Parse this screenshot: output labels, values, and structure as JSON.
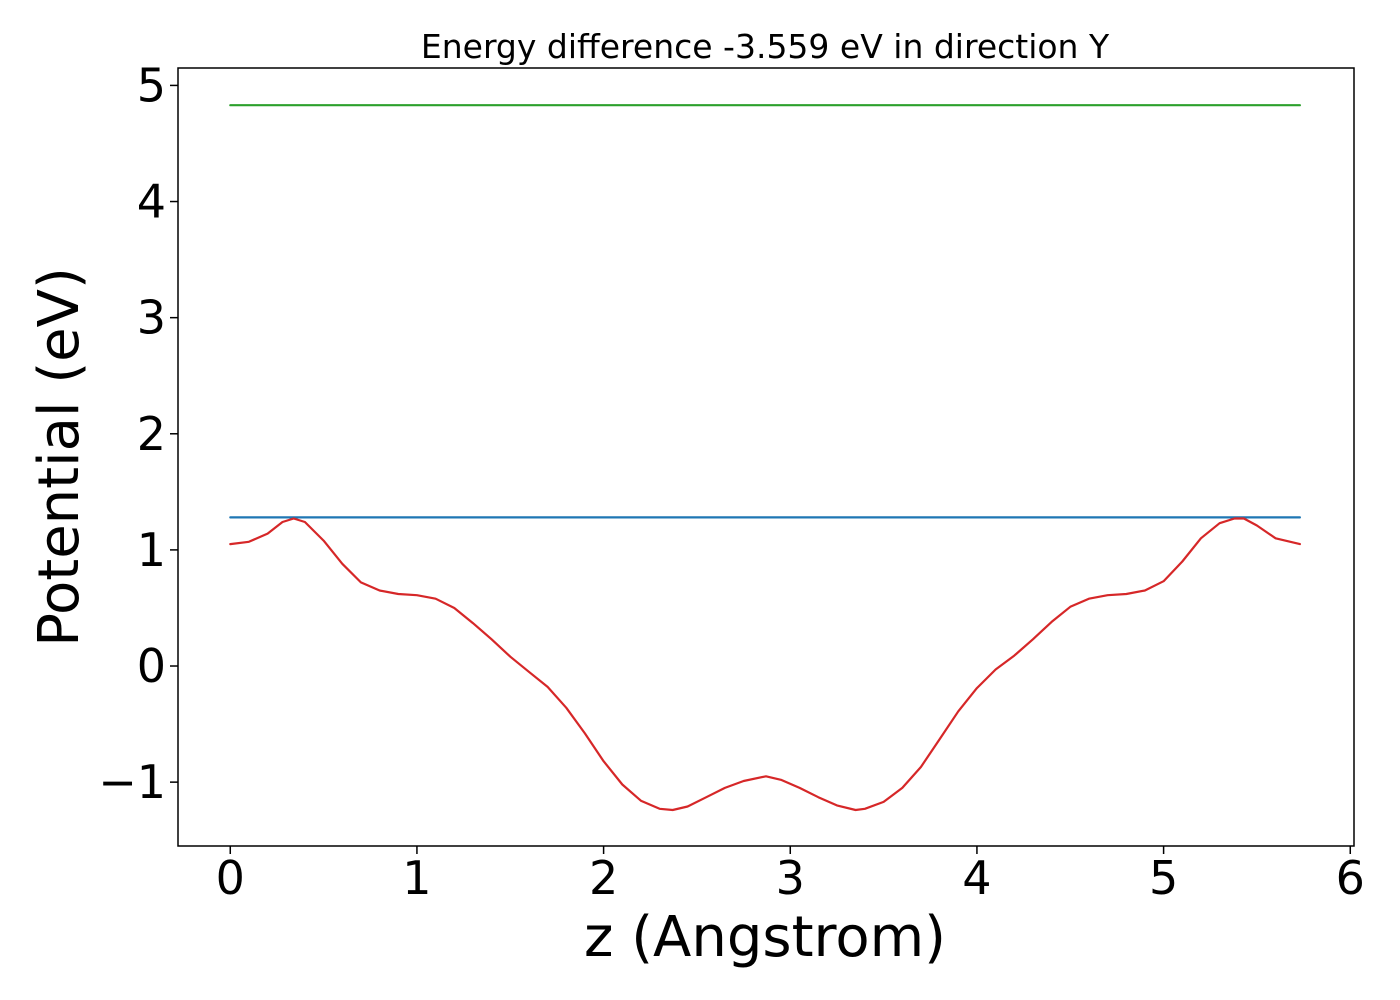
{
  "chart_data": {
    "type": "line",
    "title": "Energy difference -3.559 eV in direction Y",
    "xlabel": "z (Angstrom)",
    "ylabel": "Potential (eV)",
    "xlim": [
      -0.28,
      6.02
    ],
    "ylim": [
      -1.55,
      5.15
    ],
    "xticks": [
      0,
      1,
      2,
      3,
      4,
      5,
      6
    ],
    "yticks": [
      -1,
      0,
      1,
      2,
      3,
      4,
      5
    ],
    "ytick_labels": [
      "−1",
      "0",
      "1",
      "2",
      "3",
      "4",
      "5"
    ],
    "grid": false,
    "series": [
      {
        "color": "#2ca02c",
        "x": [
          0,
          5.73
        ],
        "y": [
          4.83,
          4.83
        ]
      },
      {
        "color": "#1f77b4",
        "x": [
          0,
          5.73
        ],
        "y": [
          1.28,
          1.28
        ]
      },
      {
        "color": "#d62728",
        "x": [
          0,
          0.1,
          0.2,
          0.28,
          0.34,
          0.4,
          0.5,
          0.6,
          0.7,
          0.8,
          0.9,
          1.0,
          1.1,
          1.2,
          1.3,
          1.4,
          1.5,
          1.6,
          1.7,
          1.8,
          1.9,
          2.0,
          2.1,
          2.2,
          2.3,
          2.37,
          2.45,
          2.55,
          2.65,
          2.75,
          2.87,
          2.95,
          3.05,
          3.15,
          3.25,
          3.35,
          3.4,
          3.5,
          3.6,
          3.7,
          3.8,
          3.9,
          4.0,
          4.1,
          4.2,
          4.3,
          4.4,
          4.5,
          4.6,
          4.7,
          4.8,
          4.9,
          5.0,
          5.1,
          5.2,
          5.3,
          5.38,
          5.43,
          5.5,
          5.6,
          5.73
        ],
        "y": [
          1.05,
          1.07,
          1.14,
          1.24,
          1.27,
          1.24,
          1.08,
          0.88,
          0.72,
          0.65,
          0.62,
          0.61,
          0.58,
          0.5,
          0.37,
          0.23,
          0.08,
          -0.05,
          -0.18,
          -0.36,
          -0.58,
          -0.82,
          -1.02,
          -1.16,
          -1.23,
          -1.24,
          -1.21,
          -1.13,
          -1.05,
          -0.99,
          -0.95,
          -0.98,
          -1.05,
          -1.13,
          -1.2,
          -1.24,
          -1.23,
          -1.17,
          -1.05,
          -0.87,
          -0.63,
          -0.39,
          -0.19,
          -0.03,
          0.09,
          0.23,
          0.38,
          0.51,
          0.58,
          0.61,
          0.62,
          0.65,
          0.73,
          0.9,
          1.1,
          1.23,
          1.27,
          1.27,
          1.21,
          1.1,
          1.05
        ]
      }
    ]
  }
}
